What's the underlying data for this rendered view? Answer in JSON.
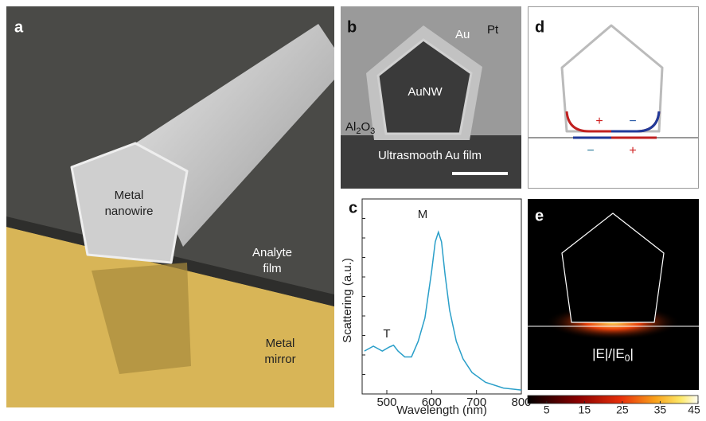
{
  "panels": {
    "a": {
      "label": "a",
      "nanowire": [
        "Metal",
        "nanowire"
      ],
      "analyte": [
        "Analyte",
        "film"
      ],
      "mirror": [
        "Metal",
        "mirror"
      ]
    },
    "b": {
      "label": "b",
      "au": "Au",
      "pt": "Pt",
      "core": "AuNW",
      "oxide": [
        "Al",
        "2",
        "O",
        "3"
      ],
      "film": "Ultrasmooth Au film"
    },
    "c": {
      "label": "c"
    },
    "d": {
      "label": "d",
      "charges": [
        "+",
        "−",
        "−",
        "+"
      ]
    },
    "e": {
      "label": "e",
      "field": [
        "|E|/|E",
        "0",
        "|"
      ]
    }
  },
  "chart_data": [
    {
      "type": "line",
      "xlabel": "Wavelength (nm)",
      "ylabel": "Scattering (a.u.)",
      "annotations": [
        "T",
        "M"
      ],
      "x": [
        450,
        470,
        490,
        505,
        515,
        525,
        540,
        555,
        570,
        585,
        600,
        608,
        615,
        622,
        630,
        640,
        655,
        670,
        690,
        720,
        760,
        800
      ],
      "series": [
        {
          "color": "#2a9fc9",
          "values": [
            0.22,
            0.245,
            0.22,
            0.24,
            0.25,
            0.22,
            0.19,
            0.19,
            0.27,
            0.39,
            0.63,
            0.78,
            0.83,
            0.78,
            0.61,
            0.43,
            0.27,
            0.18,
            0.11,
            0.06,
            0.03,
            0.02
          ]
        }
      ],
      "xlim": [
        445,
        800
      ],
      "xticks": [
        500,
        600,
        700,
        800
      ],
      "ylim": [
        0,
        1
      ]
    },
    {
      "type": "colorbar",
      "xlim": [
        0,
        45
      ],
      "xticks": [
        5,
        15,
        25,
        35,
        45
      ]
    }
  ]
}
